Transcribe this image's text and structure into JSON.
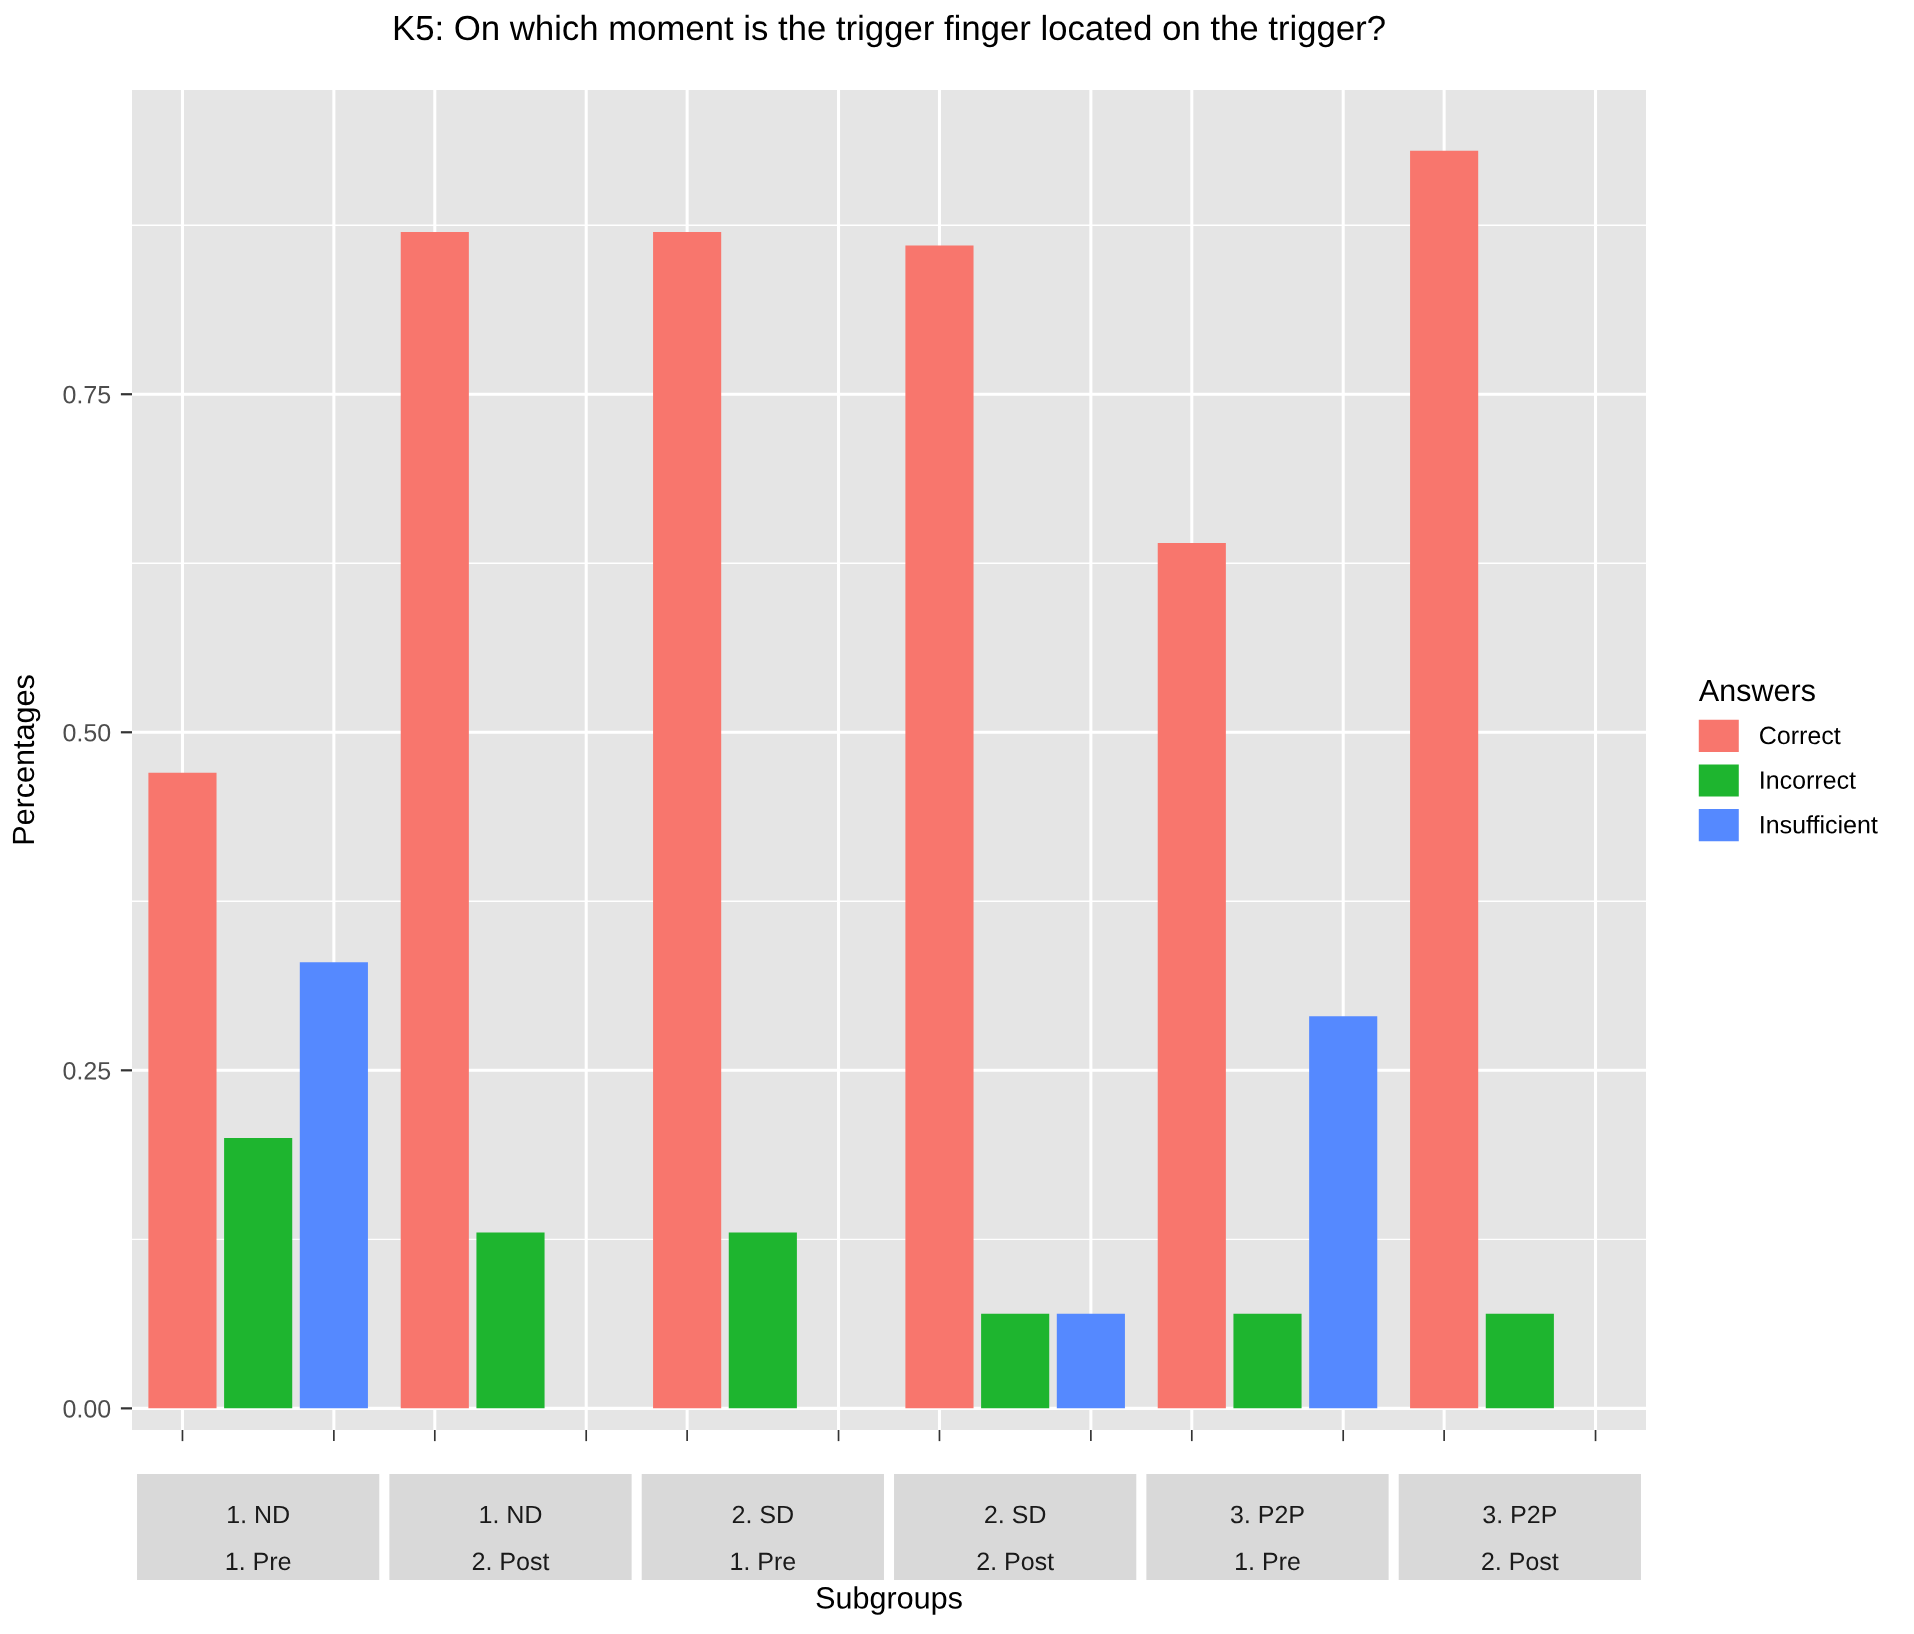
{
  "chart_data": {
    "type": "bar",
    "title": "K5: On which moment is the trigger finger located on the trigger?",
    "xlabel": "Subgroups",
    "ylabel": "Percentages",
    "legend_title": "Answers",
    "legend": "right",
    "grid": true,
    "categories": [
      "1. ND\n1. Pre",
      "1. ND\n2. Post",
      "2. SD\n1. Pre",
      "2. SD\n2. Post",
      "3. P2P\n1. Pre",
      "3. P2P\n2. Post"
    ],
    "series": [
      {
        "name": "Correct",
        "color": "#f8766d",
        "values": [
          0.47,
          0.87,
          0.87,
          0.86,
          0.64,
          0.93
        ]
      },
      {
        "name": "Incorrect",
        "color": "#1eb52f",
        "values": [
          0.2,
          0.13,
          0.13,
          0.07,
          0.07,
          0.07
        ]
      },
      {
        "name": "Insufficient",
        "color": "#5589ff",
        "values": [
          0.33,
          null,
          null,
          0.07,
          0.29,
          null
        ]
      }
    ],
    "ylim": [
      -0.016,
      0.975
    ],
    "yticks": [
      {
        "value": 0,
        "label": "0.00"
      },
      {
        "value": 0.25,
        "label": "0.25"
      },
      {
        "value": 0.5,
        "label": "0.50"
      },
      {
        "value": 0.75,
        "label": "0.75"
      }
    ]
  }
}
